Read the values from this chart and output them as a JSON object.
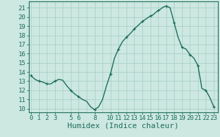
{
  "title": "",
  "xlabel": "Humidex (Indice chaleur)",
  "ylabel": "",
  "bg_color": "#cce8e0",
  "grid_color": "#aacfc8",
  "line_color": "#1a6b5a",
  "marker_color": "#1a6b5a",
  "x_ticks": [
    0,
    1,
    2,
    3,
    5,
    6,
    8,
    10,
    11,
    12,
    13,
    14,
    15,
    16,
    17,
    18,
    19,
    20,
    21,
    22,
    23
  ],
  "y_ticks": [
    10,
    11,
    12,
    13,
    14,
    15,
    16,
    17,
    18,
    19,
    20,
    21
  ],
  "xlim": [
    -0.3,
    23.5
  ],
  "ylim": [
    9.6,
    21.7
  ],
  "data_x": [
    0,
    0.5,
    1,
    1.5,
    2,
    2.5,
    3,
    3.5,
    4,
    4.5,
    5,
    5.5,
    6,
    6.5,
    7,
    7.5,
    8,
    8.5,
    9,
    9.5,
    10,
    10.5,
    11,
    11.5,
    12,
    12.5,
    13,
    13.5,
    14,
    14.5,
    15,
    15.3,
    15.5,
    15.7,
    16,
    16.3,
    16.5,
    16.7,
    17,
    17.5,
    18,
    18.5,
    19,
    19.5,
    20,
    20.5,
    21,
    21.5,
    22,
    22.5,
    23
  ],
  "data_y": [
    13.6,
    13.2,
    13.0,
    12.9,
    12.7,
    12.7,
    13.0,
    13.2,
    13.1,
    12.5,
    12.0,
    11.6,
    11.3,
    11.0,
    10.8,
    10.2,
    9.9,
    10.2,
    11.0,
    12.5,
    13.8,
    15.5,
    16.5,
    17.3,
    17.8,
    18.2,
    18.7,
    19.1,
    19.5,
    19.8,
    20.1,
    20.2,
    20.35,
    20.5,
    20.7,
    20.85,
    21.0,
    21.1,
    21.2,
    21.0,
    19.4,
    17.8,
    16.7,
    16.5,
    15.9,
    15.5,
    14.7,
    12.2,
    12.0,
    11.2,
    10.2
  ],
  "marker_x": [
    0,
    1,
    2,
    3,
    5,
    6,
    8,
    10,
    11,
    12,
    13,
    14,
    15,
    16,
    17,
    18,
    19,
    20,
    21,
    22,
    23
  ],
  "marker_y": [
    13.6,
    13.0,
    12.7,
    13.0,
    12.0,
    11.3,
    9.9,
    13.8,
    16.5,
    17.8,
    18.7,
    19.5,
    20.1,
    20.7,
    21.2,
    19.4,
    16.7,
    15.9,
    14.7,
    12.0,
    10.2
  ],
  "font_family": "monospace",
  "tick_fontsize": 6.5,
  "label_fontsize": 8
}
